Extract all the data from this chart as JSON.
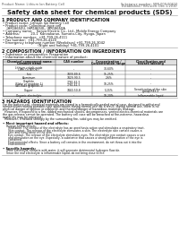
{
  "title": "Safety data sheet for chemical products (SDS)",
  "header_left": "Product Name: Lithium Ion Battery Cell",
  "header_right_line1": "Substance number: SBR-009-00610",
  "header_right_line2": "Established / Revision: Dec.1,2010",
  "bg_color": "#ffffff",
  "text_color": "#000000",
  "section1_title": "1 PRODUCT AND COMPANY IDENTIFICATION",
  "section1_items": [
    "• Product name: Lithium Ion Battery Cell",
    "• Product code: Cylindrical-type cell",
    "    IHR18650U, IHR18650L, IHR18650A",
    "• Company name:    Sanyo Electric Co., Ltd., Mobile Energy Company",
    "• Address:           20-1  Kannakarun, Sumoto-City, Hyogo, Japan",
    "• Telephone number:  +81-799-26-4111",
    "• Fax number:  +81-799-26-4120",
    "• Emergency telephone number (Weekdays) +81-799-26-3042",
    "                                   (Night and holiday) +81-799-26-4101"
  ],
  "section2_title": "2 COMPOSITION / INFORMATION ON INGREDIENTS",
  "section2_intro": "• Substance or preparation: Preparation",
  "section2_sub": "• Information about the chemical nature of product:",
  "table_headers": [
    "Chemical component name",
    "CAS number",
    "Concentration /\nConcentration range",
    "Classification and\nhazard labeling"
  ],
  "table_col_header2": [
    "Common name"
  ],
  "table_rows": [
    [
      "Lithium cobalt oxide\n(LiMn-Co-Ni(Ox))",
      "-",
      "30-60%",
      "-"
    ],
    [
      "Iron",
      "7439-89-6",
      "15-25%",
      "-"
    ],
    [
      "Aluminum",
      "7429-90-5",
      "2-6%",
      "-"
    ],
    [
      "Graphite\n(Flake or graphite-1)\n(All-flake graphite-1)",
      "7782-42-5\n7782-42-5",
      "10-25%",
      "-"
    ],
    [
      "Copper",
      "7440-50-8",
      "5-15%",
      "Sensitization of the skin\ngroup R43-2"
    ],
    [
      "Organic electrolyte",
      "-",
      "10-20%",
      "Inflammable liquid"
    ]
  ],
  "section3_title": "3 HAZARDS IDENTIFICATION",
  "section3_para1": "For the battery cell, chemical materials are stored in a hermetically sealed metal case, designed to withstand\ntemperatures during portable-type applications during normal use. As a result, during normal use, there is no\nphysical danger of ignition or explosion and thermal/danger of hazardous materials leakage.\n  However, if exposed to a fire, added mechanical shocks, decompresses, vented electro-chemical materials are\nthe gas release cannot be operated. The battery cell case will be breached at fire-extreme, hazardous\nmaterials may be released.\n  Moreover, if heated strongly by the surrounding fire, solid gas may be emitted.",
  "section3_effects_title": "• Most important hazard and effects:",
  "section3_effects": "    Human health effects:\n      Inhalation: The release of the electrolyte has an anesthesia action and stimulates a respiratory tract.\n      Skin contact: The release of the electrolyte stimulates a skin. The electrolyte skin contact causes a\n      sore and stimulation on the skin.\n      Eye contact: The release of the electrolyte stimulates eyes. The electrolyte eye contact causes a sore\n      and stimulation on the eye. Especially, a substance that causes a strong inflammation of the eye is\n      contained.\n      Environmental effects: Since a battery cell remains in the environment, do not throw out it into the\n      environment.",
  "section3_specific_title": "• Specific hazards:",
  "section3_specific": "    If the electrolyte contacts with water, it will generate detrimental hydrogen fluoride.\n    Since the real electrolyte is inflammable liquid, do not bring close to fire."
}
